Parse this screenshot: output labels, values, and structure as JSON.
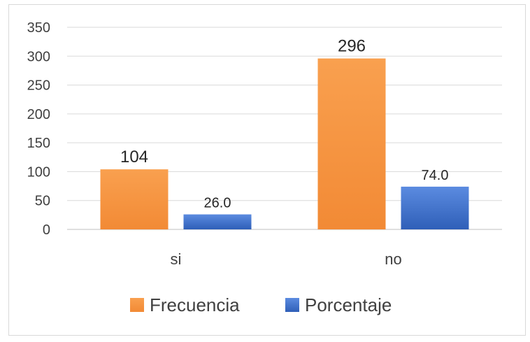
{
  "chart_data": {
    "type": "bar",
    "categories": [
      "si",
      "no"
    ],
    "series": [
      {
        "name": "Frecuencia",
        "values": [
          104,
          296
        ],
        "labels": [
          "104",
          "296"
        ],
        "color": "#f79646"
      },
      {
        "name": "Porcentaje",
        "values": [
          26.0,
          74.0
        ],
        "labels": [
          "26.0",
          "74.0"
        ],
        "color": "#4472c4"
      }
    ],
    "title": "",
    "xlabel": "",
    "ylabel": "",
    "ylim": [
      0,
      350
    ],
    "yticks": [
      "0",
      "50",
      "100",
      "150",
      "200",
      "250",
      "300",
      "350"
    ],
    "grid": true,
    "legend": "bottom"
  }
}
